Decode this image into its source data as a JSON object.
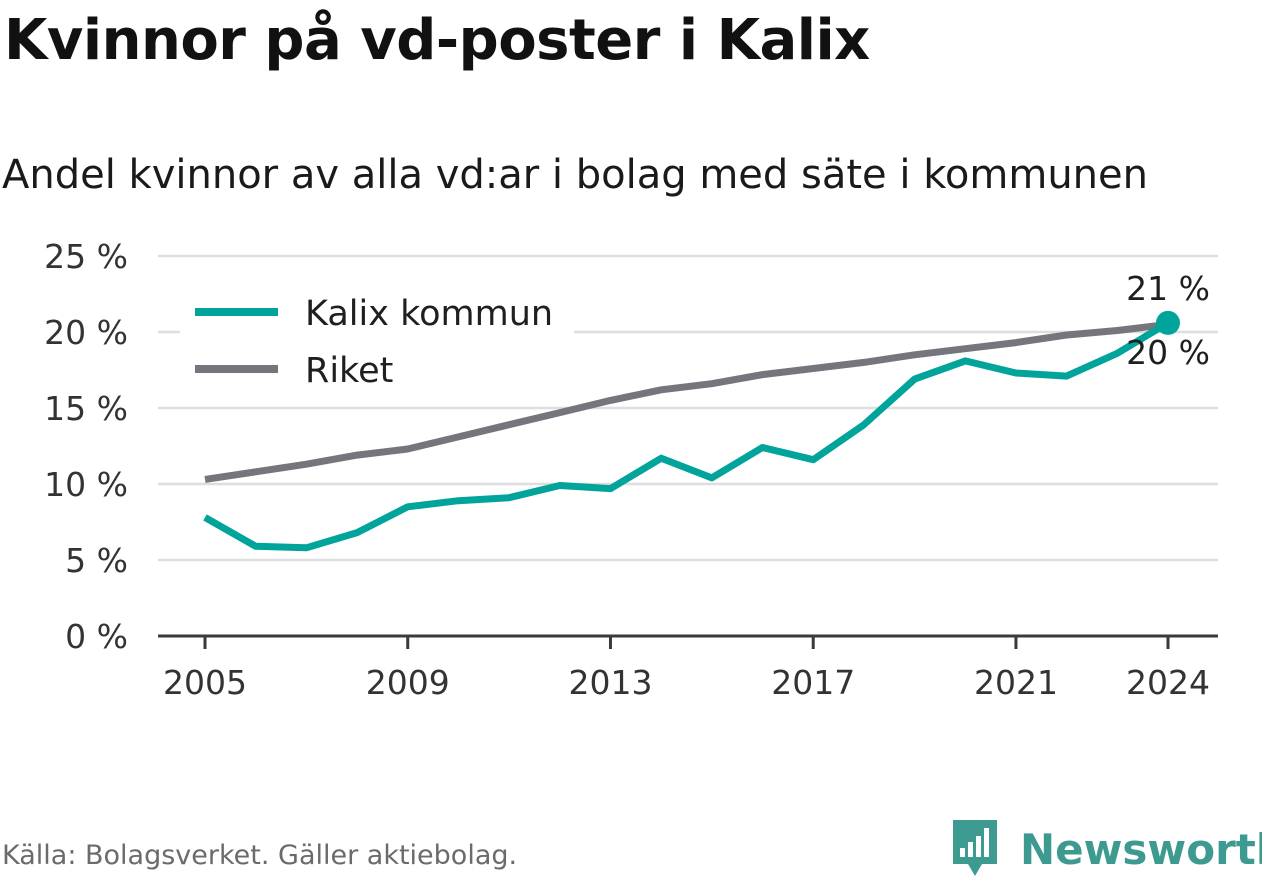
{
  "header": {
    "title": "Kvinnor på vd-poster i Kalix",
    "subtitle": "Andel kvinnor av alla vd:ar i bolag med säte i kommunen"
  },
  "footer": {
    "source": "Källa: Bolagsverket. Gäller aktiebolag.",
    "brand": "Newsworthy",
    "brand_color": "#3d9a91"
  },
  "chart_data": {
    "type": "line",
    "title": "Kvinnor på vd-poster i Kalix",
    "subtitle": "Andel kvinnor av alla vd:ar i bolag med säte i kommunen",
    "xlabel": "",
    "ylabel": "",
    "x": [
      2005,
      2006,
      2007,
      2008,
      2009,
      2010,
      2011,
      2012,
      2013,
      2014,
      2015,
      2016,
      2017,
      2018,
      2019,
      2020,
      2021,
      2022,
      2023,
      2024
    ],
    "x_ticks": [
      "2005",
      "2009",
      "2013",
      "2017",
      "2021",
      "2024"
    ],
    "ylim": [
      0,
      25
    ],
    "y_ticks": [
      "0 %",
      "5 %",
      "10 %",
      "15 %",
      "20 %",
      "25 %"
    ],
    "grid": true,
    "legend_position": "top-left",
    "series": [
      {
        "name": "Kalix kommun",
        "color": "#00a49a",
        "values": [
          7.8,
          5.9,
          5.8,
          6.8,
          8.5,
          8.9,
          9.1,
          9.9,
          9.7,
          11.7,
          10.4,
          12.4,
          11.6,
          13.9,
          16.9,
          18.1,
          17.3,
          17.1,
          18.6,
          20.6
        ],
        "end_label": "21 %"
      },
      {
        "name": "Riket",
        "color": "#76757d",
        "values": [
          10.3,
          10.8,
          11.3,
          11.9,
          12.3,
          13.1,
          13.9,
          14.7,
          15.5,
          16.2,
          16.6,
          17.2,
          17.6,
          18.0,
          18.5,
          18.9,
          19.3,
          19.8,
          20.1,
          20.5
        ],
        "end_label": "20 %"
      }
    ]
  }
}
